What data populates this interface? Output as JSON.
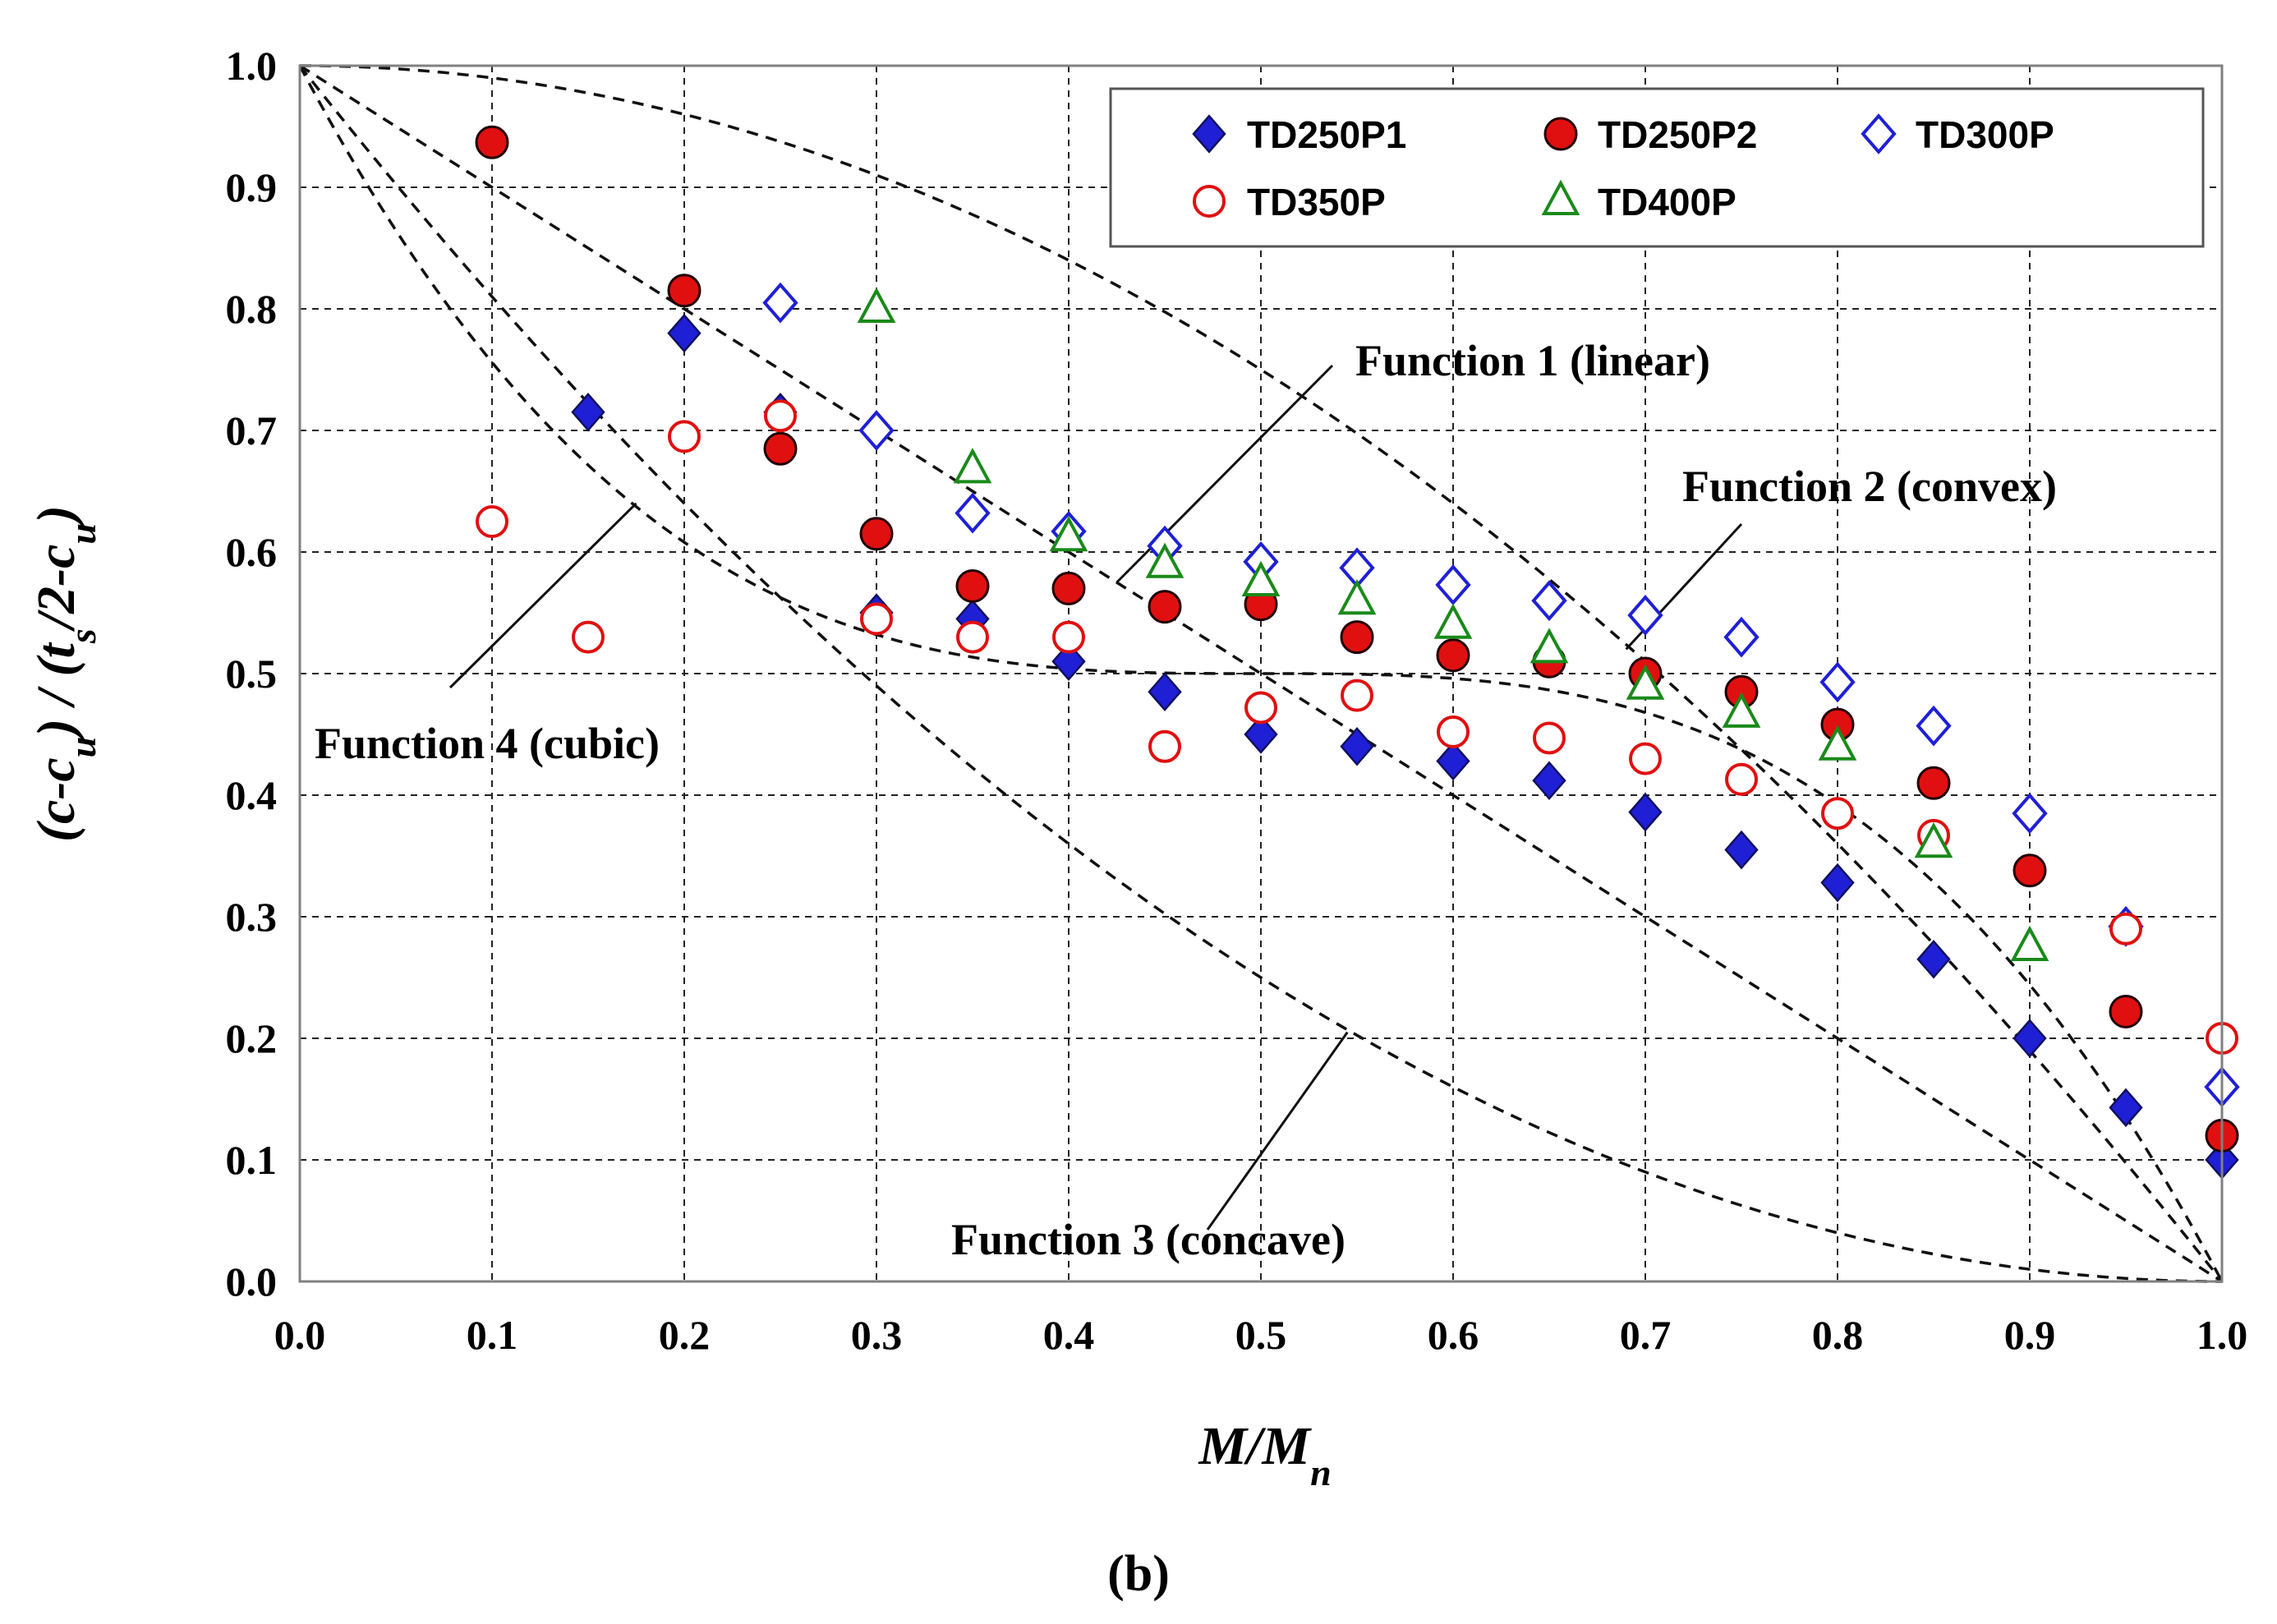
{
  "chart_data": {
    "type": "scatter",
    "title": "",
    "caption": "(b)",
    "xlabel": "M/Mn",
    "ylabel": "(c-cu) / (ts/2-cu)",
    "xlim": [
      0.0,
      1.0
    ],
    "ylim": [
      0.0,
      1.0
    ],
    "grid": true,
    "legend_position": "top-right",
    "x_ticks": [
      "0.0",
      "0.1",
      "0.2",
      "0.3",
      "0.4",
      "0.5",
      "0.6",
      "0.7",
      "0.8",
      "0.9",
      "1.0"
    ],
    "y_ticks": [
      "0.0",
      "0.1",
      "0.2",
      "0.3",
      "0.4",
      "0.5",
      "0.6",
      "0.7",
      "0.8",
      "0.9",
      "1.0"
    ],
    "series": [
      {
        "name": "TD250P1",
        "marker": "diamond-filled",
        "color": "#1f1fd6",
        "points": [
          [
            0.15,
            0.715
          ],
          [
            0.2,
            0.78
          ],
          [
            0.25,
            0.715
          ],
          [
            0.3,
            0.55
          ],
          [
            0.35,
            0.545
          ],
          [
            0.4,
            0.51
          ],
          [
            0.45,
            0.485
          ],
          [
            0.5,
            0.45
          ],
          [
            0.55,
            0.44
          ],
          [
            0.6,
            0.428
          ],
          [
            0.65,
            0.412
          ],
          [
            0.7,
            0.386
          ],
          [
            0.75,
            0.355
          ],
          [
            0.8,
            0.328
          ],
          [
            0.85,
            0.265
          ],
          [
            0.9,
            0.2
          ],
          [
            0.95,
            0.143
          ],
          [
            1.0,
            0.1
          ]
        ]
      },
      {
        "name": "TD250P2",
        "marker": "circle-filled",
        "color": "#e01010",
        "points": [
          [
            0.1,
            0.937
          ],
          [
            0.2,
            0.815
          ],
          [
            0.25,
            0.685
          ],
          [
            0.3,
            0.615
          ],
          [
            0.35,
            0.572
          ],
          [
            0.4,
            0.57
          ],
          [
            0.45,
            0.555
          ],
          [
            0.5,
            0.557
          ],
          [
            0.55,
            0.53
          ],
          [
            0.6,
            0.515
          ],
          [
            0.65,
            0.51
          ],
          [
            0.7,
            0.5
          ],
          [
            0.75,
            0.485
          ],
          [
            0.8,
            0.458
          ],
          [
            0.85,
            0.41
          ],
          [
            0.9,
            0.338
          ],
          [
            0.95,
            0.222
          ],
          [
            1.0,
            0.12
          ]
        ]
      },
      {
        "name": "TD300P",
        "marker": "diamond-open",
        "color": "#1f1fd6",
        "points": [
          [
            0.25,
            0.805
          ],
          [
            0.3,
            0.7
          ],
          [
            0.35,
            0.632
          ],
          [
            0.4,
            0.617
          ],
          [
            0.45,
            0.605
          ],
          [
            0.5,
            0.592
          ],
          [
            0.55,
            0.587
          ],
          [
            0.6,
            0.573
          ],
          [
            0.65,
            0.56
          ],
          [
            0.7,
            0.548
          ],
          [
            0.75,
            0.53
          ],
          [
            0.8,
            0.493
          ],
          [
            0.85,
            0.457
          ],
          [
            0.9,
            0.385
          ],
          [
            0.95,
            0.292
          ],
          [
            1.0,
            0.16
          ]
        ]
      },
      {
        "name": "TD350P",
        "marker": "circle-open",
        "color": "#e01010",
        "points": [
          [
            0.1,
            0.625
          ],
          [
            0.15,
            0.53
          ],
          [
            0.2,
            0.695
          ],
          [
            0.25,
            0.712
          ],
          [
            0.3,
            0.545
          ],
          [
            0.35,
            0.53
          ],
          [
            0.4,
            0.53
          ],
          [
            0.45,
            0.44
          ],
          [
            0.5,
            0.472
          ],
          [
            0.55,
            0.482
          ],
          [
            0.6,
            0.452
          ],
          [
            0.65,
            0.447
          ],
          [
            0.7,
            0.43
          ],
          [
            0.75,
            0.413
          ],
          [
            0.8,
            0.385
          ],
          [
            0.85,
            0.367
          ],
          [
            0.95,
            0.29
          ],
          [
            1.0,
            0.2
          ]
        ]
      },
      {
        "name": "TD400P",
        "marker": "triangle-open",
        "color": "#1a8a1a",
        "points": [
          [
            0.3,
            0.8
          ],
          [
            0.35,
            0.668
          ],
          [
            0.4,
            0.612
          ],
          [
            0.45,
            0.59
          ],
          [
            0.5,
            0.575
          ],
          [
            0.55,
            0.56
          ],
          [
            0.6,
            0.54
          ],
          [
            0.65,
            0.52
          ],
          [
            0.7,
            0.49
          ],
          [
            0.75,
            0.467
          ],
          [
            0.8,
            0.44
          ],
          [
            0.85,
            0.36
          ],
          [
            0.9,
            0.275
          ]
        ]
      }
    ],
    "reference_curves": [
      {
        "name": "Function 1 (linear)",
        "formula": "1 - x"
      },
      {
        "name": "Function 2 (convex)",
        "formula": "1 - x^2"
      },
      {
        "name": "Function 3 (concave)",
        "formula": "(1 - x)^2"
      },
      {
        "name": "Function 4 (cubic)",
        "formula": "0.5 + 4*(0.5 - x)^3"
      }
    ],
    "annotations": [
      {
        "text": "Function 1 (linear)",
        "arrow_to": [
          0.425,
          0.575
        ]
      },
      {
        "text": "Function 2 (convex)",
        "arrow_to": [
          0.69,
          0.52
        ]
      },
      {
        "text": "Function 3 (concave)",
        "arrow_to": [
          0.545,
          0.205
        ]
      },
      {
        "text": "Function 4 (cubic)",
        "arrow_to": [
          0.175,
          0.64
        ]
      }
    ]
  }
}
